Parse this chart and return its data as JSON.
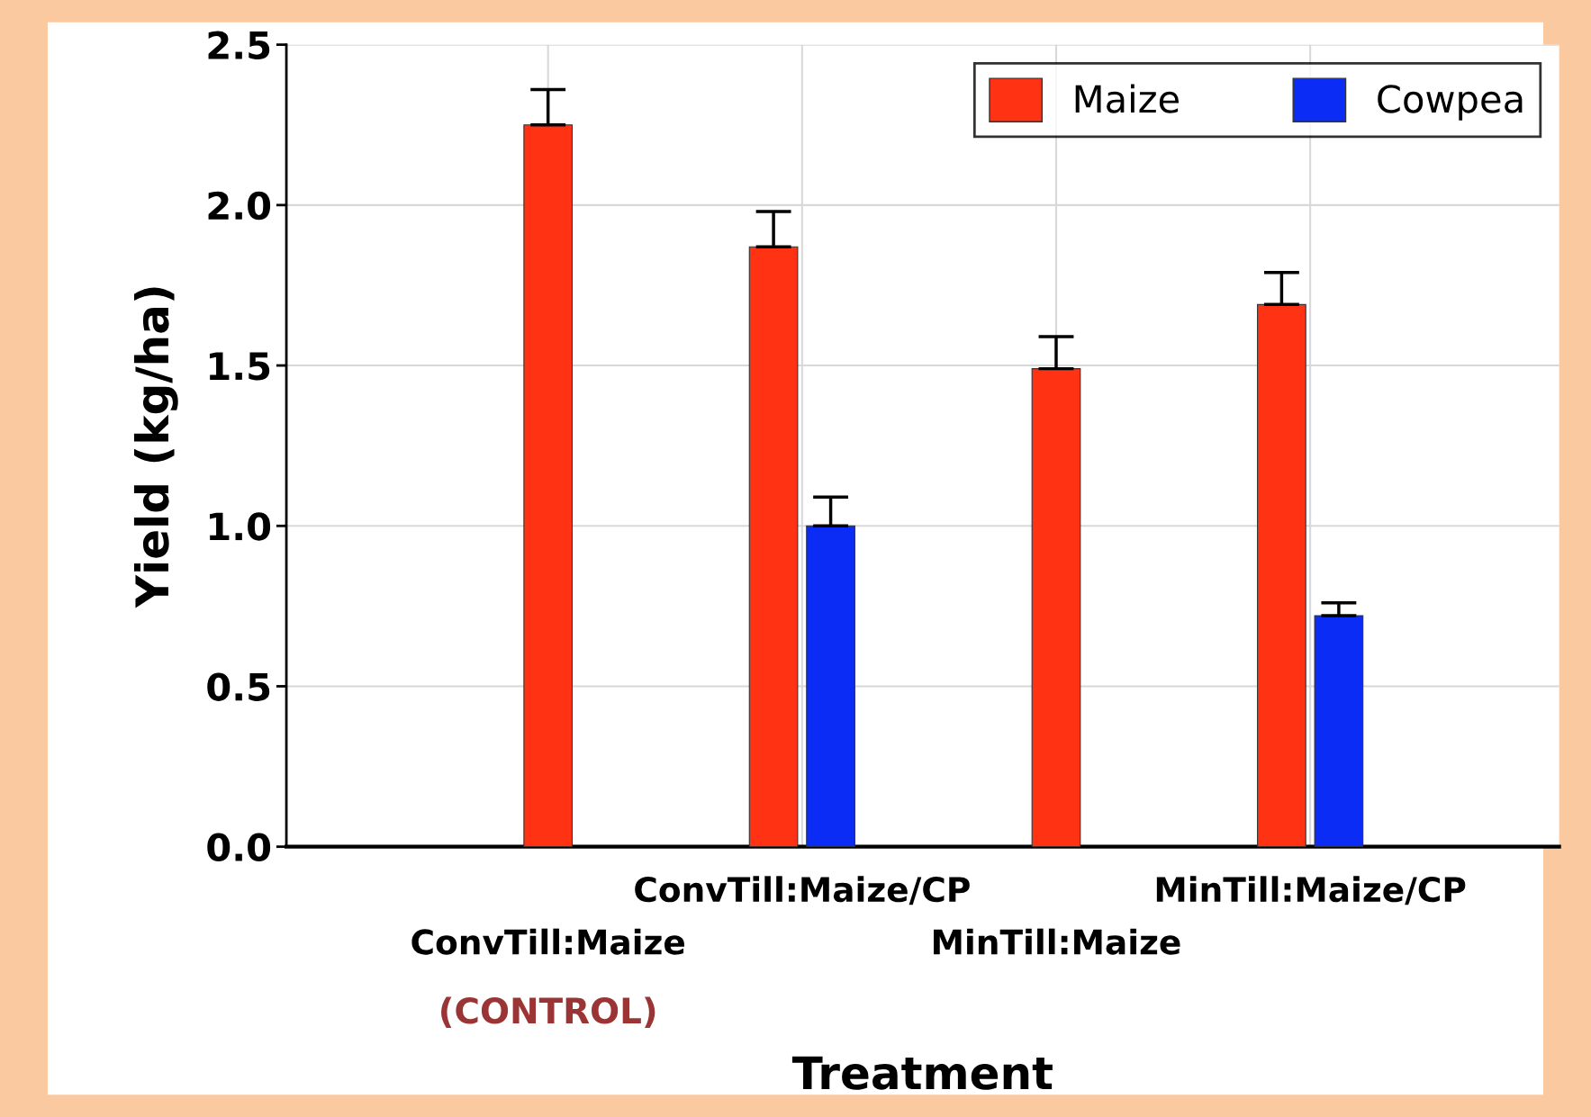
{
  "chart_data": {
    "type": "bar",
    "xlabel": "Treatment",
    "ylabel": "Yield (kg/ha)",
    "categories": [
      "ConvTill:Maize",
      "ConvTill:Maize/CP",
      "MinTill:Maize",
      "MinTill:Maize/CP"
    ],
    "series": [
      {
        "name": "Maize",
        "color": "#ff3314",
        "values": [
          2.25,
          1.87,
          1.49,
          1.69
        ],
        "errors": [
          [
            2.25,
            2.36
          ],
          [
            1.87,
            1.98
          ],
          [
            1.49,
            1.59
          ],
          [
            1.69,
            1.79
          ]
        ]
      },
      {
        "name": "Cowpea",
        "color": "#0a2cf5",
        "values": [
          null,
          1.0,
          null,
          0.72
        ],
        "errors": [
          null,
          [
            1.0,
            1.09
          ],
          null,
          [
            0.72,
            0.76
          ]
        ]
      }
    ],
    "ylim": [
      0,
      2.5
    ],
    "yticks": [
      {
        "value": 0,
        "label": "0.0"
      },
      {
        "value": 0.5,
        "label": "0.5"
      },
      {
        "value": 1,
        "label": "1.0"
      },
      {
        "value": 1.5,
        "label": "1.5"
      },
      {
        "value": 2,
        "label": "2.0"
      },
      {
        "value": 2.5,
        "label": "2.5"
      }
    ],
    "grid": true,
    "legend": "top right",
    "annotations": [
      "(CONTROL)"
    ]
  }
}
